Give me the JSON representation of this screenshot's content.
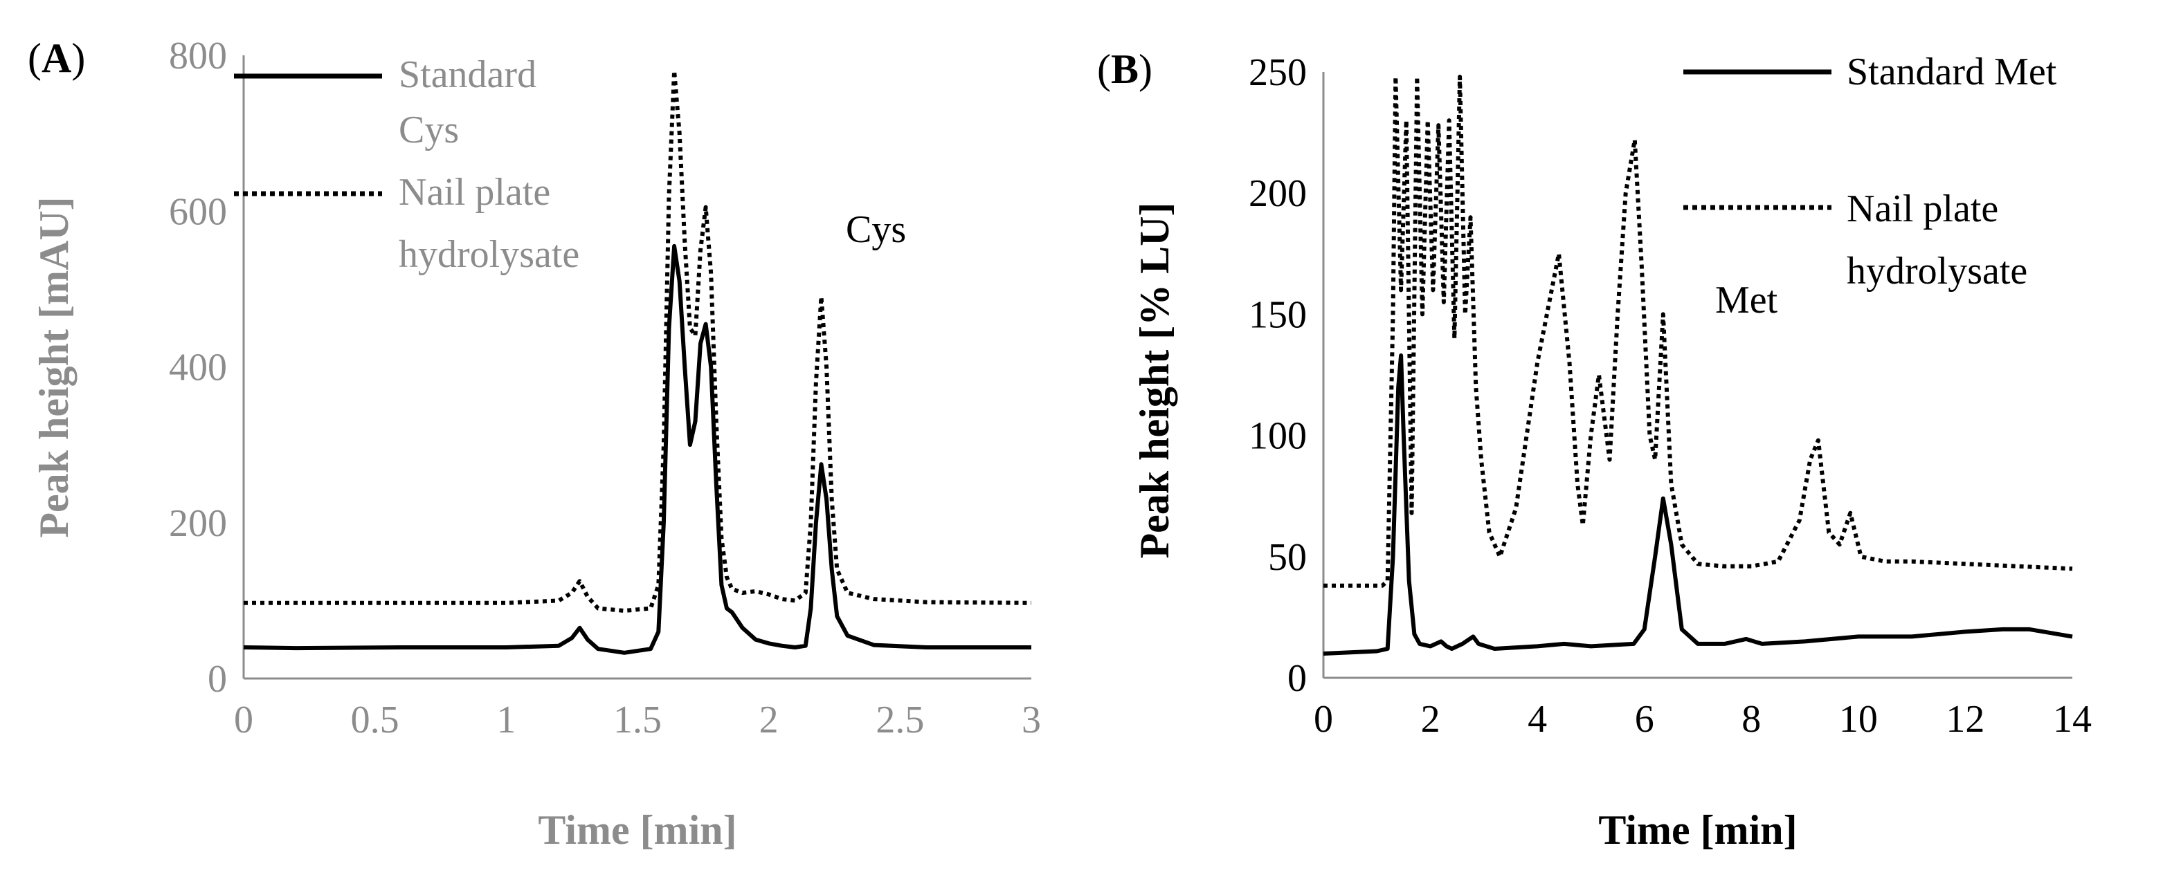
{
  "colors": {
    "series": "#000000",
    "axis_gray": "#8c8c8c",
    "text_gray": "#8c8c8c",
    "text_dark": "#000000"
  },
  "chart_data": [
    {
      "id": "A",
      "panel_label": {
        "open": "(",
        "letter": "A",
        "close": ")"
      },
      "type": "line",
      "xlabel": "Time [min]",
      "ylabel": "Peak height [mAU]",
      "xlim": [
        0,
        3
      ],
      "ylim": [
        0,
        800
      ],
      "xticks": [
        0,
        0.5,
        1,
        1.5,
        2,
        2.5,
        3
      ],
      "yticks": [
        0,
        200,
        400,
        600,
        800
      ],
      "xtick_labels": [
        "0",
        "0.5",
        "1",
        "1.5",
        "2",
        "2.5",
        "3"
      ],
      "ytick_labels": [
        "0",
        "200",
        "400",
        "600",
        "800"
      ],
      "annotations": [
        {
          "text": "Cys",
          "x": 2.35,
          "y": 570
        }
      ],
      "series": [
        {
          "name": "Standard Cys",
          "legend_lines": [
            "Standard",
            "Cys"
          ],
          "style": "solid",
          "x": [
            0,
            0.2,
            0.6,
            1.0,
            1.2,
            1.25,
            1.28,
            1.31,
            1.35,
            1.45,
            1.55,
            1.58,
            1.6,
            1.62,
            1.64,
            1.66,
            1.68,
            1.7,
            1.72,
            1.74,
            1.76,
            1.78,
            1.8,
            1.82,
            1.84,
            1.86,
            1.9,
            1.95,
            2.0,
            2.05,
            2.1,
            2.14,
            2.16,
            2.18,
            2.2,
            2.22,
            2.24,
            2.26,
            2.3,
            2.4,
            2.6,
            3.0
          ],
          "y": [
            40,
            39,
            40,
            40,
            42,
            52,
            65,
            50,
            38,
            33,
            38,
            60,
            200,
            450,
            555,
            510,
            400,
            300,
            330,
            430,
            455,
            400,
            250,
            120,
            90,
            85,
            65,
            50,
            45,
            42,
            40,
            42,
            90,
            200,
            275,
            230,
            140,
            80,
            55,
            43,
            40,
            40
          ]
        },
        {
          "name": "Nail plate hydrolysate",
          "legend_lines": [
            "Nail plate",
            "hydrolysate"
          ],
          "style": "dotted",
          "x": [
            0,
            0.6,
            1.0,
            1.2,
            1.25,
            1.28,
            1.31,
            1.35,
            1.45,
            1.55,
            1.58,
            1.6,
            1.62,
            1.64,
            1.66,
            1.68,
            1.7,
            1.72,
            1.74,
            1.76,
            1.78,
            1.8,
            1.82,
            1.84,
            1.86,
            1.9,
            1.95,
            2.0,
            2.05,
            2.1,
            2.14,
            2.16,
            2.18,
            2.2,
            2.22,
            2.24,
            2.26,
            2.3,
            2.4,
            2.6,
            3.0
          ],
          "y": [
            97,
            97,
            97,
            100,
            110,
            125,
            105,
            90,
            87,
            90,
            120,
            300,
            620,
            780,
            700,
            560,
            450,
            440,
            550,
            605,
            520,
            330,
            180,
            130,
            115,
            110,
            112,
            108,
            102,
            100,
            110,
            200,
            380,
            490,
            400,
            230,
            140,
            110,
            102,
            98,
            97
          ]
        }
      ]
    },
    {
      "id": "B",
      "panel_label": {
        "open": "(",
        "letter": "B",
        "close": ")"
      },
      "type": "line",
      "xlabel": "Time [min]",
      "ylabel": "Peak height [% LU]",
      "xlim": [
        0,
        14
      ],
      "ylim": [
        0,
        250
      ],
      "xticks": [
        0,
        2,
        4,
        6,
        8,
        10,
        12,
        14
      ],
      "yticks": [
        0,
        50,
        100,
        150,
        200,
        250
      ],
      "xtick_labels": [
        "0",
        "2",
        "4",
        "6",
        "8",
        "10",
        "12",
        "14"
      ],
      "ytick_labels": [
        "0",
        "50",
        "100",
        "150",
        "200",
        "250"
      ],
      "annotations": [
        {
          "text": "Met",
          "x": 7.0,
          "y": 150
        }
      ],
      "series": [
        {
          "name": "Standard Met",
          "legend_lines": [
            "Standard Met"
          ],
          "style": "solid",
          "x": [
            0,
            1.0,
            1.2,
            1.3,
            1.4,
            1.45,
            1.5,
            1.6,
            1.7,
            1.8,
            2.0,
            2.2,
            2.3,
            2.4,
            2.6,
            2.8,
            2.9,
            3.2,
            4.0,
            4.5,
            5.0,
            5.8,
            6.0,
            6.2,
            6.35,
            6.5,
            6.7,
            7.0,
            7.5,
            7.9,
            8.2,
            9.0,
            10.0,
            11.0,
            12.0,
            12.7,
            13.2,
            14.0
          ],
          "y": [
            10,
            11,
            12,
            50,
            120,
            133,
            100,
            40,
            18,
            14,
            13,
            15,
            13,
            12,
            14,
            17,
            14,
            12,
            13,
            14,
            13,
            14,
            20,
            50,
            74,
            55,
            20,
            14,
            14,
            16,
            14,
            15,
            17,
            17,
            19,
            20,
            20,
            17
          ]
        },
        {
          "name": "Nail plate hydrolysate",
          "legend_lines": [
            "Nail plate",
            "hydrolysate"
          ],
          "style": "dotted",
          "x": [
            0,
            1.1,
            1.2,
            1.3,
            1.35,
            1.45,
            1.55,
            1.65,
            1.75,
            1.85,
            1.95,
            2.05,
            2.15,
            2.25,
            2.35,
            2.45,
            2.55,
            2.65,
            2.75,
            2.85,
            2.95,
            3.1,
            3.3,
            3.6,
            4.0,
            4.4,
            4.6,
            4.75,
            4.85,
            5.0,
            5.15,
            5.35,
            5.5,
            5.65,
            5.82,
            5.95,
            6.1,
            6.2,
            6.35,
            6.5,
            6.7,
            7.0,
            7.5,
            8.0,
            8.5,
            8.9,
            9.1,
            9.25,
            9.45,
            9.65,
            9.85,
            10.05,
            10.5,
            11.0,
            12.0,
            13.0,
            14.0
          ],
          "y": [
            38,
            38,
            40,
            150,
            248,
            160,
            230,
            68,
            248,
            150,
            230,
            160,
            228,
            155,
            230,
            140,
            248,
            150,
            190,
            120,
            90,
            60,
            50,
            70,
            130,
            175,
            130,
            80,
            63,
            100,
            125,
            90,
            150,
            200,
            222,
            170,
            100,
            90,
            150,
            80,
            55,
            47,
            46,
            46,
            48,
            65,
            90,
            98,
            60,
            55,
            68,
            50,
            48,
            48,
            47,
            46,
            45
          ]
        }
      ]
    }
  ]
}
